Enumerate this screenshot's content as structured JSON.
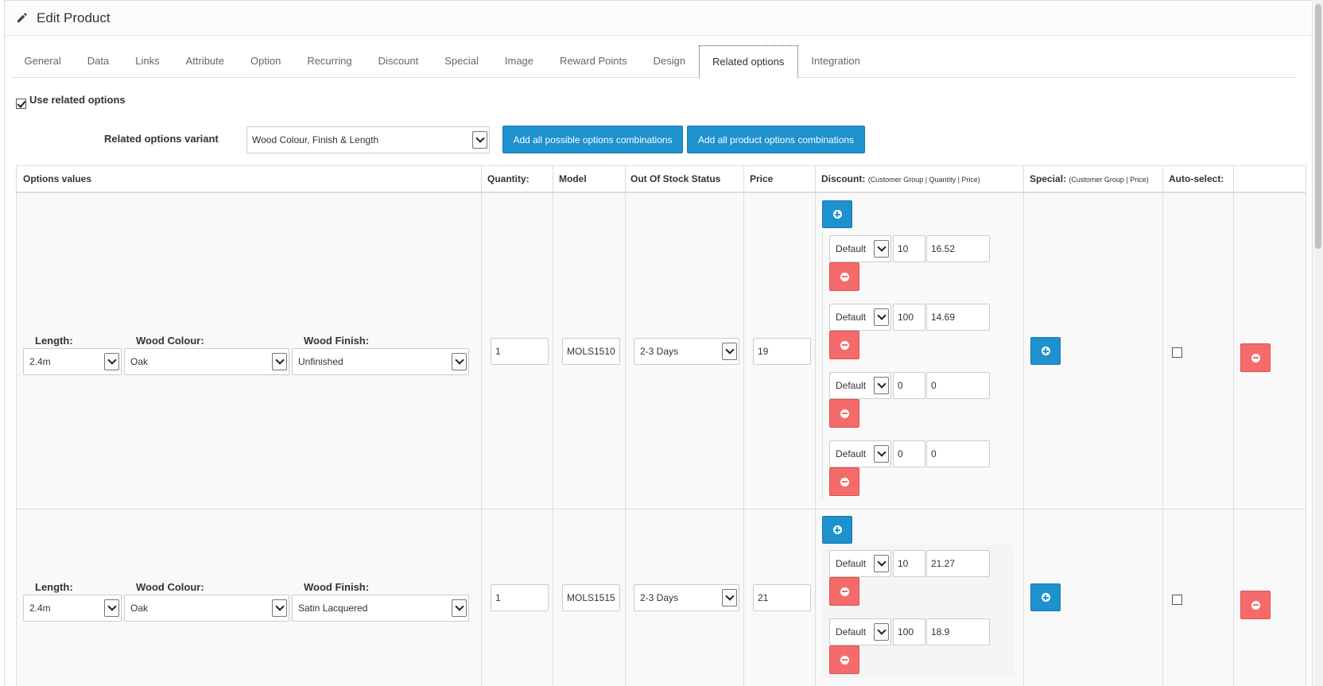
{
  "panel": {
    "title": "Edit Product"
  },
  "tabs": [
    {
      "label": "General"
    },
    {
      "label": "Data"
    },
    {
      "label": "Links"
    },
    {
      "label": "Attribute"
    },
    {
      "label": "Option"
    },
    {
      "label": "Recurring"
    },
    {
      "label": "Discount"
    },
    {
      "label": "Special"
    },
    {
      "label": "Image"
    },
    {
      "label": "Reward Points"
    },
    {
      "label": "Design"
    },
    {
      "label": "Related options",
      "active": true
    },
    {
      "label": "Integration"
    }
  ],
  "use_related": {
    "label": "Use related options",
    "checked": true
  },
  "variant": {
    "label": "Related options variant",
    "selected": "Wood Colour, Finish & Length",
    "add_all_possible": "Add all possible options combinations",
    "add_all_product": "Add all product options combinations"
  },
  "table": {
    "headers": {
      "options_values": "Options values",
      "quantity": "Quantity:",
      "model": "Model",
      "stock_status": "Out Of Stock Status",
      "price": "Price",
      "discount": "Discount:",
      "discount_sub": "(Customer Group | Quantity | Price)",
      "special": "Special:",
      "special_sub": "(Customer Group | Price)",
      "autoselect": "Auto-select:"
    },
    "option_labels": {
      "length": "Length:",
      "colour": "Wood Colour:",
      "finish": "Wood Finish:"
    },
    "rows": [
      {
        "length": "2.4m",
        "colour": "Oak",
        "finish": "Unfinished",
        "quantity": "1",
        "model": "MOLS1510",
        "stock_status": "2-3 Days",
        "price": "19",
        "discounts": [
          {
            "group": "Default",
            "qty": "10",
            "price": "16.52"
          },
          {
            "group": "Default",
            "qty": "100",
            "price": "14.69"
          },
          {
            "group": "Default",
            "qty": "0",
            "price": "0"
          },
          {
            "group": "Default",
            "qty": "0",
            "price": "0"
          }
        ],
        "autoselect": false
      },
      {
        "length": "2.4m",
        "colour": "Oak",
        "finish": "Satin Lacquered",
        "quantity": "1",
        "model": "MOLS1515",
        "stock_status": "2-3 Days",
        "price": "21",
        "discounts": [
          {
            "group": "Default",
            "qty": "10",
            "price": "21.27"
          },
          {
            "group": "Default",
            "qty": "100",
            "price": "18.9"
          }
        ],
        "autoselect": false
      }
    ]
  },
  "icons": {
    "edit": "pencil-icon",
    "add": "plus-circle-icon",
    "remove": "minus-circle-icon"
  },
  "colors": {
    "primary": "#1e91cf",
    "danger": "#f56b6b"
  }
}
